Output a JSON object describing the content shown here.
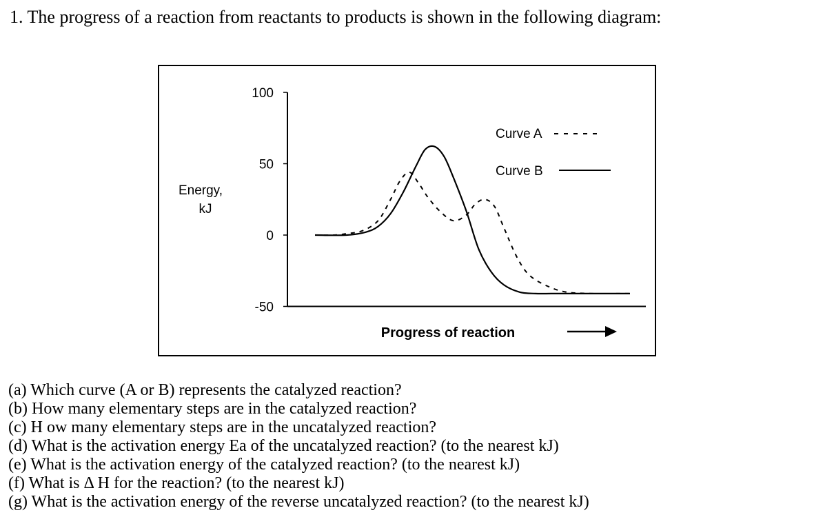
{
  "intro": "1. The progress of a reaction from reactants to products is shown in the following diagram:",
  "chart_data": {
    "type": "line",
    "ylabel_lines": [
      "Energy,",
      "kJ"
    ],
    "xlabel": "Progress of reaction",
    "yticks": [
      "100",
      "50",
      "0",
      "-50"
    ],
    "ylim": [
      -50,
      100
    ],
    "grid": false,
    "legend_placement": "top-right",
    "series": [
      {
        "name": "Curve A",
        "style": "dashed",
        "x": [
          0,
          6,
          10,
          15,
          20,
          24,
          27,
          30,
          33,
          36,
          40,
          44,
          48,
          51,
          54,
          57,
          60,
          64,
          68,
          74,
          80,
          88,
          96,
          100
        ],
        "y": [
          0,
          0,
          1,
          3,
          10,
          25,
          38,
          44,
          36,
          26,
          16,
          10,
          14,
          22,
          25,
          20,
          5,
          -15,
          -28,
          -36,
          -40,
          -41,
          -41,
          -41
        ]
      },
      {
        "name": "Curve B",
        "style": "solid",
        "x": [
          0,
          10,
          16,
          20,
          24,
          28,
          32,
          35,
          38,
          41,
          44,
          48,
          52,
          56,
          60,
          65,
          70,
          75,
          80,
          88,
          100
        ],
        "y": [
          0,
          0,
          2,
          6,
          15,
          30,
          48,
          60,
          62,
          55,
          40,
          17,
          -10,
          -26,
          -35,
          -40,
          -41,
          -41,
          -41,
          -41,
          -41
        ]
      }
    ]
  },
  "questions": [
    "(a) Which curve (A or B) represents the catalyzed reaction?",
    "(b) How many elementary steps are in the catalyzed reaction?",
    "(c) H ow many elementary steps are in the uncatalyzed reaction?",
    "(d) What is the activation energy Ea of the uncatalyzed reaction? (to the nearest kJ)",
    "(e) What is the activation energy of the catalyzed reaction? (to the nearest kJ)",
    "(f) What is Δ  H for the reaction? (to the nearest kJ)",
    "(g) What is the activation energy of the reverse uncatalyzed reaction? (to the nearest kJ)"
  ]
}
